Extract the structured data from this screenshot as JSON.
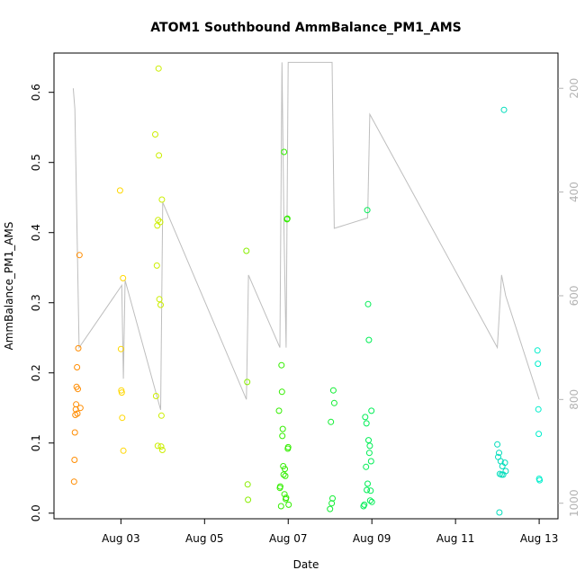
{
  "chart_data": {
    "type": "scatter",
    "title": "ATOM1 Southbound AmmBalance_PM1_AMS",
    "xlabel": "Date",
    "ylabel": "AmmBalance_PM1_AMS",
    "x_ticks": [
      "Aug 03",
      "Aug 05",
      "Aug 07",
      "Aug 09",
      "Aug 11",
      "Aug 13"
    ],
    "x_tick_days": [
      3,
      5,
      7,
      9,
      11,
      13
    ],
    "xlim": [
      1.4,
      13.45
    ],
    "ylim": [
      -0.008,
      0.656
    ],
    "y_ticks": [
      0.0,
      0.1,
      0.2,
      0.3,
      0.4,
      0.5,
      0.6
    ],
    "y_tick_labels": [
      "0.0",
      "0.1",
      "0.2",
      "0.3",
      "0.4",
      "0.5",
      "0.6"
    ],
    "y2_lim": [
      1030,
      132
    ],
    "y2_ticks": [
      200,
      400,
      600,
      800,
      1000
    ],
    "y2_tick_labels": [
      "200",
      "400",
      "600",
      "800",
      "1000"
    ],
    "grid": false,
    "legend": "none",
    "colors": {
      "axis": "#000000",
      "secondary_axis": "#b3b3b3",
      "trace": "#bebebe"
    },
    "series": [
      {
        "color": "#ff8c00",
        "x": [
          1.88,
          1.89,
          1.9,
          1.91,
          1.92,
          1.93,
          1.94,
          1.95,
          1.96,
          1.97,
          1.98,
          2.01,
          2.03
        ],
        "y": [
          0.045,
          0.076,
          0.115,
          0.14,
          0.148,
          0.155,
          0.18,
          0.208,
          0.142,
          0.177,
          0.235,
          0.368,
          0.15
        ]
      },
      {
        "color": "#ffd700",
        "x": [
          2.98,
          3.0,
          3.01,
          3.02,
          3.03,
          3.05,
          3.06
        ],
        "y": [
          0.46,
          0.234,
          0.175,
          0.172,
          0.136,
          0.335,
          0.089
        ]
      },
      {
        "color": "#ccee00",
        "x": [
          3.82,
          3.84,
          3.86,
          3.87,
          3.88,
          3.89,
          3.9,
          3.91,
          3.92,
          3.94,
          3.95,
          3.96,
          3.97,
          3.98,
          3.99
        ],
        "y": [
          0.54,
          0.167,
          0.353,
          0.41,
          0.096,
          0.418,
          0.634,
          0.51,
          0.305,
          0.415,
          0.297,
          0.095,
          0.139,
          0.447,
          0.09
        ]
      },
      {
        "color": "#88ee00",
        "x": [
          6.0,
          6.02,
          6.03,
          6.04
        ],
        "y": [
          0.374,
          0.187,
          0.041,
          0.019
        ]
      },
      {
        "color": "#33ee00",
        "x": [
          6.78,
          6.8,
          6.81,
          6.83,
          6.84,
          6.85,
          6.86,
          6.87,
          6.88,
          6.89,
          6.9,
          6.91,
          6.92,
          6.93,
          6.94,
          6.95,
          6.97,
          6.98,
          6.99,
          7.0,
          7.01
        ],
        "y": [
          0.146,
          0.036,
          0.038,
          0.01,
          0.211,
          0.173,
          0.11,
          0.12,
          0.067,
          0.055,
          0.515,
          0.027,
          0.063,
          0.053,
          0.02,
          0.022,
          0.419,
          0.42,
          0.092,
          0.094,
          0.012
        ]
      },
      {
        "color": "#11ee33",
        "x": [
          8.0,
          8.02,
          8.04,
          8.06,
          8.08,
          8.1
        ],
        "y": [
          0.006,
          0.13,
          0.014,
          0.021,
          0.175,
          0.157
        ]
      },
      {
        "color": "#00ee55",
        "x": [
          8.8,
          8.82,
          8.84,
          8.86,
          8.87,
          8.88,
          8.89,
          8.9,
          8.91,
          8.92,
          8.93,
          8.94,
          8.95,
          8.96,
          8.97,
          8.98,
          8.99,
          9.0
        ],
        "y": [
          0.01,
          0.012,
          0.137,
          0.066,
          0.128,
          0.033,
          0.432,
          0.042,
          0.298,
          0.104,
          0.247,
          0.086,
          0.096,
          0.018,
          0.032,
          0.074,
          0.146,
          0.016
        ]
      },
      {
        "color": "#00ddbb",
        "x": [
          12.0,
          12.02,
          12.04,
          12.05,
          12.06,
          12.08,
          12.1,
          12.12,
          12.14,
          12.16,
          12.18,
          12.2
        ],
        "y": [
          0.098,
          0.08,
          0.086,
          0.001,
          0.056,
          0.074,
          0.055,
          0.067,
          0.055,
          0.575,
          0.072,
          0.06
        ]
      },
      {
        "color": "#00eecc",
        "x": [
          12.96,
          12.97,
          12.98,
          12.99,
          13.0,
          13.01
        ],
        "y": [
          0.232,
          0.213,
          0.148,
          0.113,
          0.049,
          0.047
        ]
      }
    ],
    "trace_y2": {
      "x": [
        1.86,
        1.9,
        2.0,
        3.02,
        3.06,
        3.1,
        3.95,
        4.0,
        6.0,
        6.05,
        6.8,
        6.85,
        6.9,
        6.95,
        7.0,
        8.05,
        8.1,
        8.9,
        8.95,
        12.0,
        12.1,
        12.2,
        13.0
      ],
      "y": [
        200,
        240,
        700,
        580,
        760,
        570,
        820,
        420,
        800,
        560,
        700,
        150,
        480,
        700,
        150,
        150,
        470,
        450,
        250,
        700,
        560,
        600,
        800
      ]
    }
  }
}
